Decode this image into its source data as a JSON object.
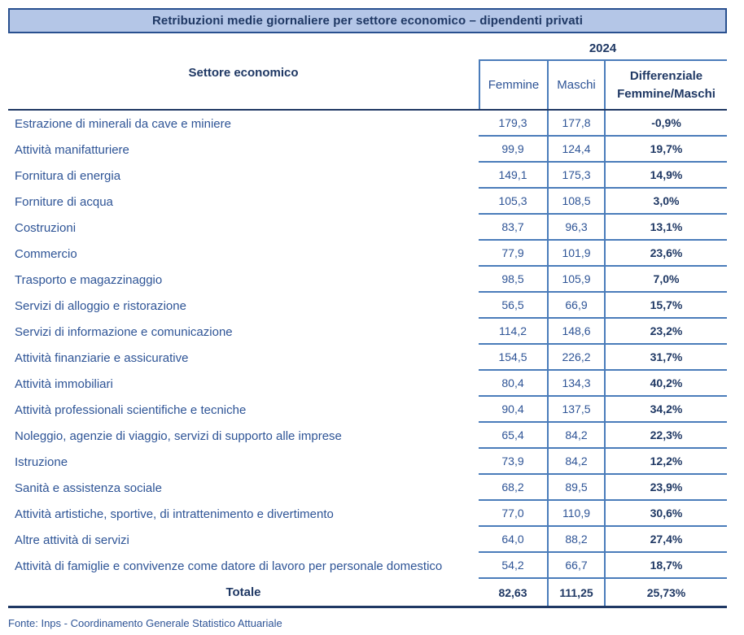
{
  "title": "Retribuzioni medie giornaliere per settore economico – dipendenti privati",
  "columns": {
    "sector": "Settore economico",
    "year": "2024",
    "femmine": "Femmine",
    "maschi": "Maschi",
    "differenziale_line1": "Differenziale",
    "differenziale_line2": "Femmine/Maschi"
  },
  "rows": [
    {
      "sector": "Estrazione di minerali da cave e miniere",
      "femmine": "179,3",
      "maschi": "177,8",
      "diff": "-0,9%"
    },
    {
      "sector": "Attività manifatturiere",
      "femmine": "99,9",
      "maschi": "124,4",
      "diff": "19,7%"
    },
    {
      "sector": "Fornitura di energia",
      "femmine": "149,1",
      "maschi": "175,3",
      "diff": "14,9%"
    },
    {
      "sector": "Forniture di acqua",
      "femmine": "105,3",
      "maschi": "108,5",
      "diff": "3,0%"
    },
    {
      "sector": "Costruzioni",
      "femmine": "83,7",
      "maschi": "96,3",
      "diff": "13,1%"
    },
    {
      "sector": "Commercio",
      "femmine": "77,9",
      "maschi": "101,9",
      "diff": "23,6%"
    },
    {
      "sector": "Trasporto e magazzinaggio",
      "femmine": "98,5",
      "maschi": "105,9",
      "diff": "7,0%"
    },
    {
      "sector": "Servizi di alloggio e ristorazione",
      "femmine": "56,5",
      "maschi": "66,9",
      "diff": "15,7%"
    },
    {
      "sector": "Servizi di informazione e comunicazione",
      "femmine": "114,2",
      "maschi": "148,6",
      "diff": "23,2%"
    },
    {
      "sector": "Attività finanziarie e assicurative",
      "femmine": "154,5",
      "maschi": "226,2",
      "diff": "31,7%"
    },
    {
      "sector": "Attività immobiliari",
      "femmine": "80,4",
      "maschi": "134,3",
      "diff": "40,2%"
    },
    {
      "sector": "Attività professionali scientifiche e tecniche",
      "femmine": "90,4",
      "maschi": "137,5",
      "diff": "34,2%"
    },
    {
      "sector": "Noleggio, agenzie di viaggio, servizi di supporto alle imprese",
      "femmine": "65,4",
      "maschi": "84,2",
      "diff": "22,3%"
    },
    {
      "sector": "Istruzione",
      "femmine": "73,9",
      "maschi": "84,2",
      "diff": "12,2%"
    },
    {
      "sector": "Sanità e assistenza sociale",
      "femmine": "68,2",
      "maschi": "89,5",
      "diff": "23,9%"
    },
    {
      "sector": "Attività artistiche, sportive, di intrattenimento e divertimento",
      "femmine": "77,0",
      "maschi": "110,9",
      "diff": "30,6%"
    },
    {
      "sector": "Altre attività di servizi",
      "femmine": "64,0",
      "maschi": "88,2",
      "diff": "27,4%"
    },
    {
      "sector": "Attività di famiglie e convivenze come datore di lavoro per personale domestico",
      "femmine": "54,2",
      "maschi": "66,7",
      "diff": "18,7%"
    }
  ],
  "total": {
    "label": "Totale",
    "femmine": "82,63",
    "maschi": "111,25",
    "diff": "25,73%"
  },
  "source": "Fonte: Inps - Coordinamento Generale Statistico Attuariale",
  "colors": {
    "title_bg": "#b4c6e7",
    "dark_navy": "#1f3864",
    "text_blue": "#2e5496",
    "line_blue": "#4a7cba"
  }
}
